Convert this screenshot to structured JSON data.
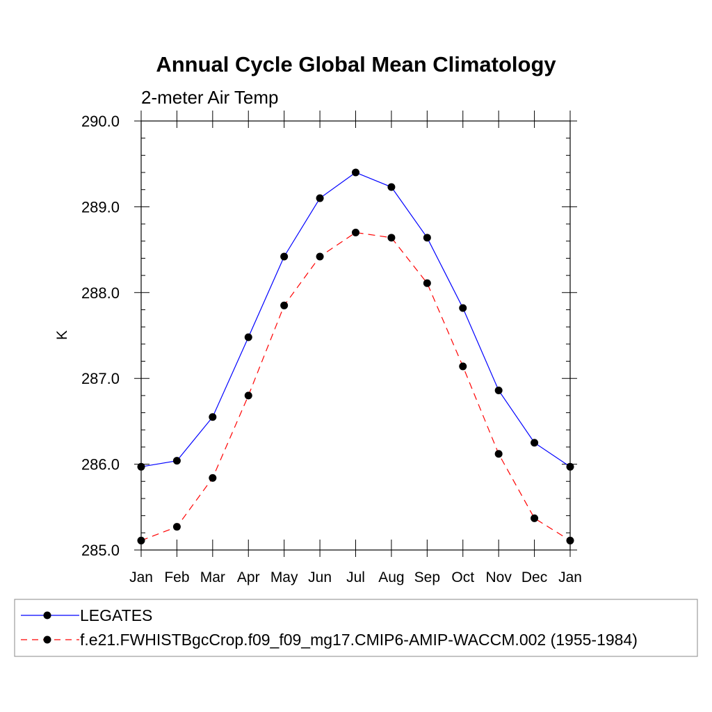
{
  "chart_data": {
    "type": "line",
    "title": "Annual Cycle Global Mean Climatology",
    "subtitle": "2-meter Air Temp",
    "xlabel": "",
    "ylabel": "K",
    "ylim": [
      285.0,
      290.0
    ],
    "yticks": [
      "285.0",
      "286.0",
      "287.0",
      "288.0",
      "289.0",
      "290.0"
    ],
    "categories": [
      "Jan",
      "Feb",
      "Mar",
      "Apr",
      "May",
      "Jun",
      "Jul",
      "Aug",
      "Sep",
      "Oct",
      "Nov",
      "Dec",
      "Jan"
    ],
    "grid": false,
    "legend_position": "bottom",
    "series": [
      {
        "name": "LEGATES",
        "color": "#0000ff",
        "dashed": false,
        "values": [
          285.97,
          286.04,
          286.55,
          287.48,
          288.42,
          289.1,
          289.4,
          289.23,
          288.64,
          287.82,
          286.86,
          286.25,
          285.97
        ]
      },
      {
        "name": "f.e21.FWHISTBgcCrop.f09_f09_mg17.CMIP6-AMIP-WACCM.002 (1955-1984)",
        "color": "#ff0000",
        "dashed": true,
        "values": [
          285.11,
          285.27,
          285.84,
          286.8,
          287.85,
          288.42,
          288.7,
          288.64,
          288.11,
          287.14,
          286.12,
          285.37,
          285.11
        ]
      }
    ]
  }
}
